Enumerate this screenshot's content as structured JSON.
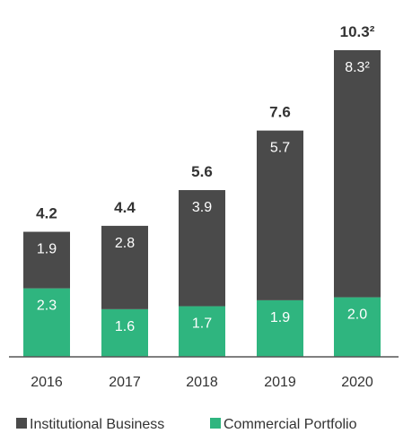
{
  "chart_data": {
    "type": "bar",
    "stacked": true,
    "categories": [
      "2016",
      "2017",
      "2018",
      "2019",
      "2020"
    ],
    "series": [
      {
        "name": "Commercial Portfolio",
        "color": "#2fb57f",
        "values": [
          2.3,
          1.6,
          1.7,
          1.9,
          2.0
        ],
        "labels": [
          "2.3",
          "1.6",
          "1.7",
          "1.9",
          "2.0"
        ]
      },
      {
        "name": "Institutional Business",
        "color": "#4a4a4a",
        "values": [
          1.9,
          2.8,
          3.9,
          5.7,
          8.3
        ],
        "labels": [
          "1.9",
          "2.8",
          "3.9",
          "5.7",
          "8.3²"
        ]
      }
    ],
    "totals": [
      4.2,
      4.4,
      5.6,
      7.6,
      10.3
    ],
    "total_labels": [
      "4.2",
      "4.4",
      "5.6",
      "7.6",
      "10.3²"
    ],
    "ylim": [
      0,
      10.6
    ],
    "legend": {
      "position": "bottom",
      "entries": [
        "Institutional Business",
        "Commercial Portfolio"
      ]
    },
    "axis_color": "#555555",
    "grid": false
  }
}
